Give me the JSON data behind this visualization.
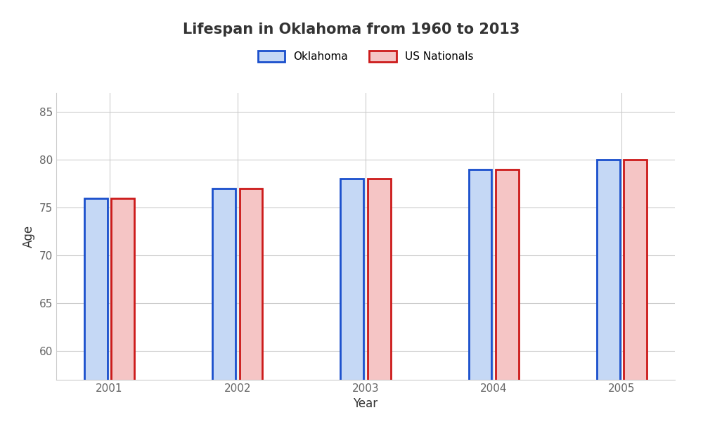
{
  "title": "Lifespan in Oklahoma from 1960 to 2013",
  "xlabel": "Year",
  "ylabel": "Age",
  "years": [
    2001,
    2002,
    2003,
    2004,
    2005
  ],
  "oklahoma": [
    76,
    77,
    78,
    79,
    80
  ],
  "us_nationals": [
    76,
    77,
    78,
    79,
    80
  ],
  "ylim": [
    57,
    87
  ],
  "yticks": [
    60,
    65,
    70,
    75,
    80,
    85
  ],
  "bar_width": 0.18,
  "bar_gap": 0.03,
  "oklahoma_face": "#c5d8f5",
  "oklahoma_edge": "#1a4fcc",
  "us_face": "#f5c5c5",
  "us_edge": "#cc1a1a",
  "grid_color": "#cccccc",
  "title_fontsize": 15,
  "label_fontsize": 12,
  "tick_fontsize": 11,
  "legend_fontsize": 11,
  "title_color": "#333333",
  "tick_color": "#666666",
  "label_color": "#333333",
  "figure_width": 10.0,
  "figure_height": 6.0,
  "dpi": 100
}
